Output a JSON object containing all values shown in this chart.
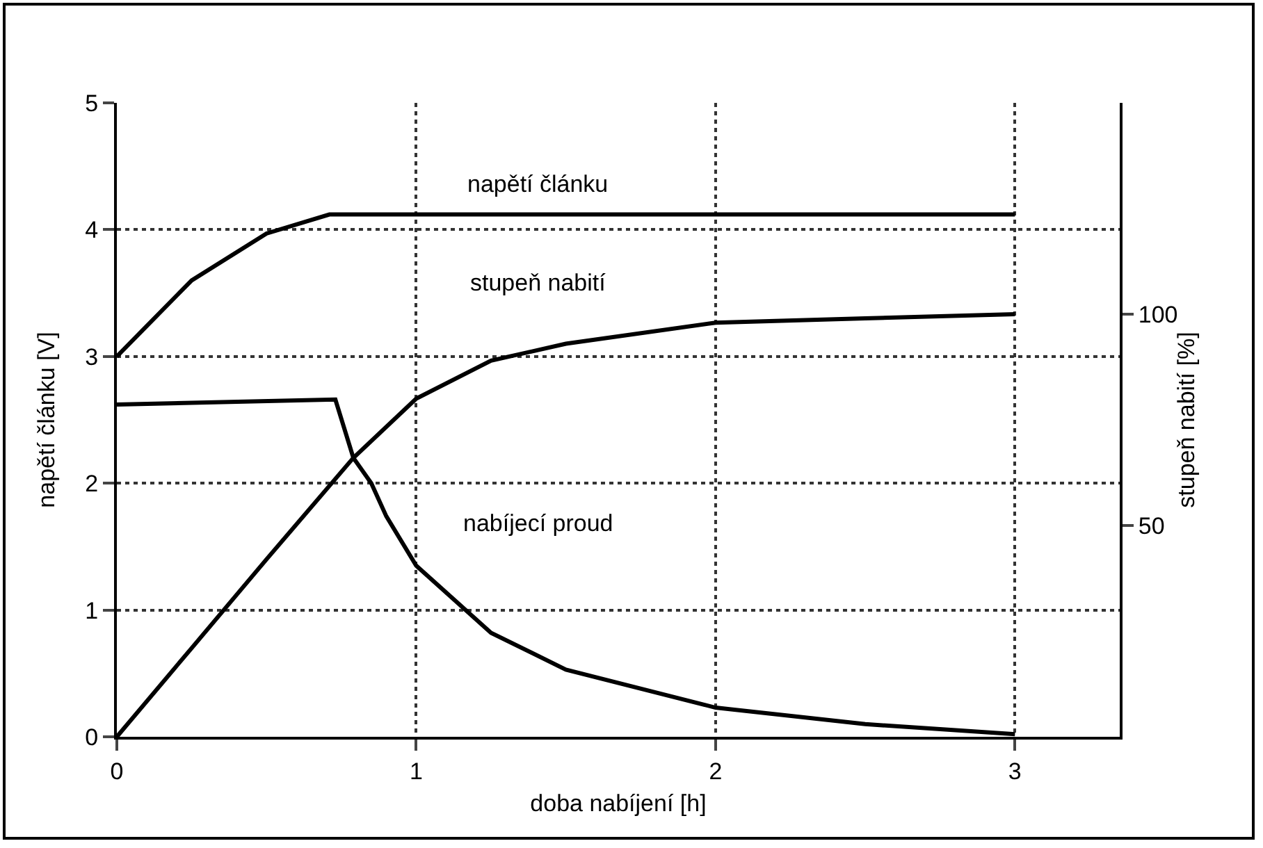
{
  "chart_data": {
    "type": "line",
    "xlabel": "doba nabíjení [h]",
    "ylabel": "napětí článku [V]",
    "y2label": "stupeň nabití [%]",
    "xlim": [
      0,
      3.35
    ],
    "xticks": [
      0,
      1,
      2,
      3
    ],
    "ylim": [
      0,
      5
    ],
    "yticks": [
      0,
      1,
      2,
      3,
      4,
      5
    ],
    "y2lim": [
      0,
      150
    ],
    "y2ticks": [
      50,
      100
    ],
    "grid": true,
    "legend": false,
    "line_style": "solid",
    "marker": "none",
    "series": [
      {
        "name": "napětí článku",
        "color": "#000000",
        "x": [
          0,
          0.25,
          0.5,
          0.71,
          3
        ],
        "values": [
          3.0,
          3.6,
          3.97,
          4.12,
          4.12
        ]
      },
      {
        "name": "stupeň nabití",
        "color": "#000000",
        "axis": "y2",
        "x": [
          0,
          0.25,
          0.5,
          0.79,
          1,
          1.25,
          1.5,
          2,
          2.5,
          3
        ],
        "values": [
          0,
          21,
          42,
          66,
          80,
          89,
          93,
          98,
          99,
          100
        ]
      },
      {
        "name": "nabíjecí proud",
        "color": "#000000",
        "x": [
          0,
          0.73,
          0.79,
          0.85,
          0.9,
          1,
          1.25,
          1.5,
          2,
          2.5,
          3
        ],
        "values": [
          2.62,
          2.66,
          2.2,
          2.0,
          1.74,
          1.35,
          0.82,
          0.53,
          0.23,
          0.1,
          0.02
        ]
      }
    ]
  }
}
